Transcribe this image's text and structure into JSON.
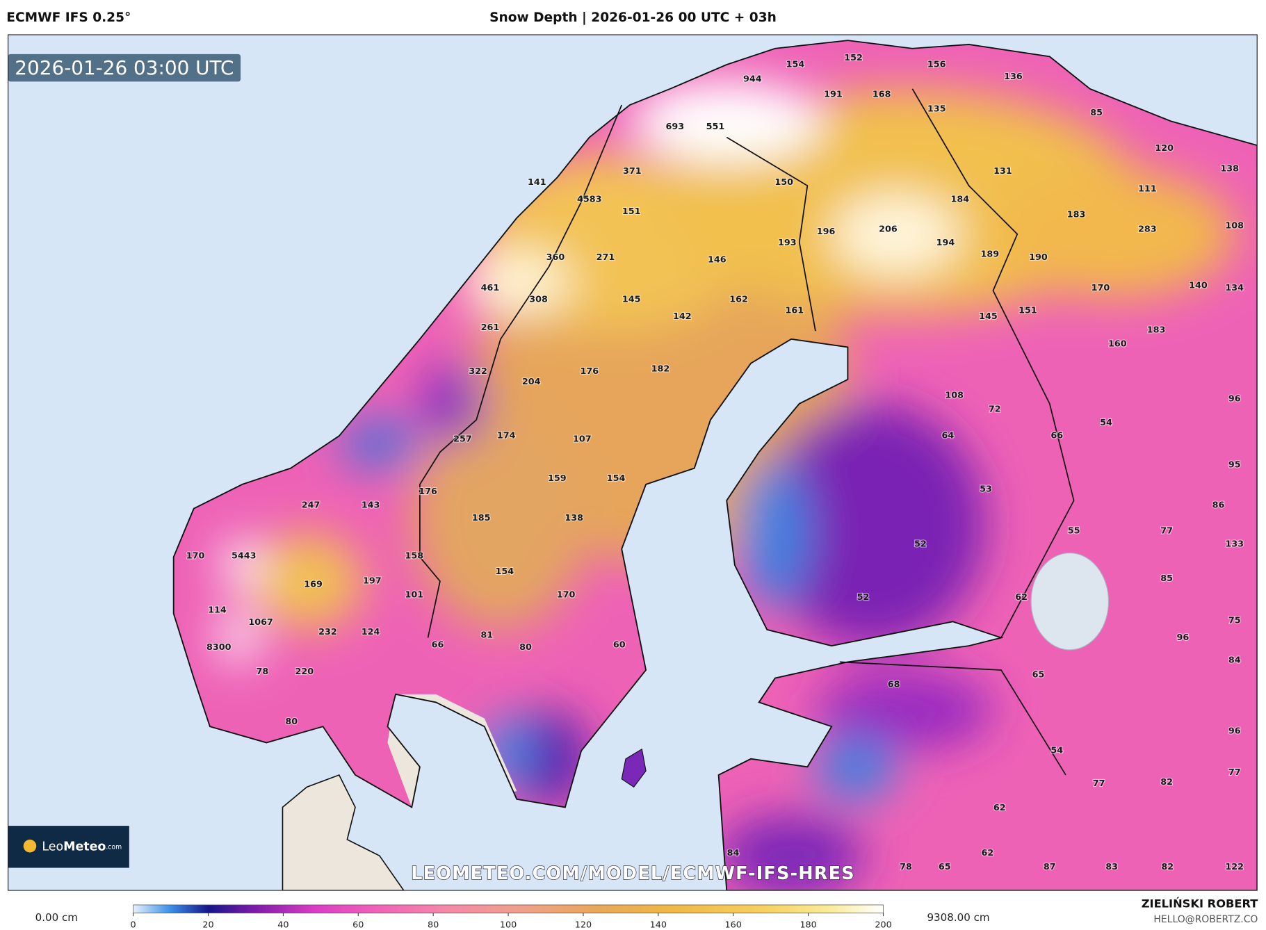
{
  "header": {
    "model": "ECMWF IFS 0.25°",
    "title": "Snow Depth | 2026-01-26 00 UTC + 03h"
  },
  "map": {
    "valid_time": "2026-01-26 03:00 UTC",
    "logo": [
      "Leo",
      "Meteo",
      ".com"
    ],
    "watermark": "LEOMETEO.COM/MODEL/ECMWF-IFS-HRES",
    "point_values": [
      154,
      152,
      156,
      136,
      944,
      191,
      168,
      135,
      85,
      693,
      551,
      120,
      371,
      131,
      138,
      141,
      150,
      4583,
      111,
      184,
      151,
      183,
      206,
      283,
      108,
      196,
      193,
      194,
      360,
      271,
      146,
      189,
      190,
      461,
      308,
      145,
      162,
      170,
      140,
      134,
      142,
      161,
      151,
      145,
      261,
      183,
      160,
      322,
      176,
      182,
      204,
      108,
      72,
      96,
      54,
      257,
      174,
      107,
      64,
      66,
      95,
      159,
      154,
      53,
      176,
      247,
      143,
      86,
      185,
      138,
      55,
      77,
      133,
      52,
      170,
      5443,
      158,
      154,
      85,
      169,
      197,
      101,
      170,
      52,
      62,
      114,
      1067,
      75,
      232,
      124,
      81,
      96,
      8300,
      66,
      80,
      60,
      84,
      78,
      220,
      65,
      68,
      80,
      96,
      54,
      77,
      77,
      82,
      62,
      84,
      62,
      78,
      65,
      87,
      83,
      82,
      122
    ]
  },
  "legend": {
    "min_label": "0.00 cm",
    "max_label": "9308.00 cm",
    "ticks": [
      0,
      20,
      40,
      60,
      80,
      100,
      120,
      140,
      160,
      180,
      200
    ]
  },
  "credit": {
    "author": "ZIELIŃSKI ROBERT",
    "email": "HELLO@ROBERTZ.CO"
  }
}
